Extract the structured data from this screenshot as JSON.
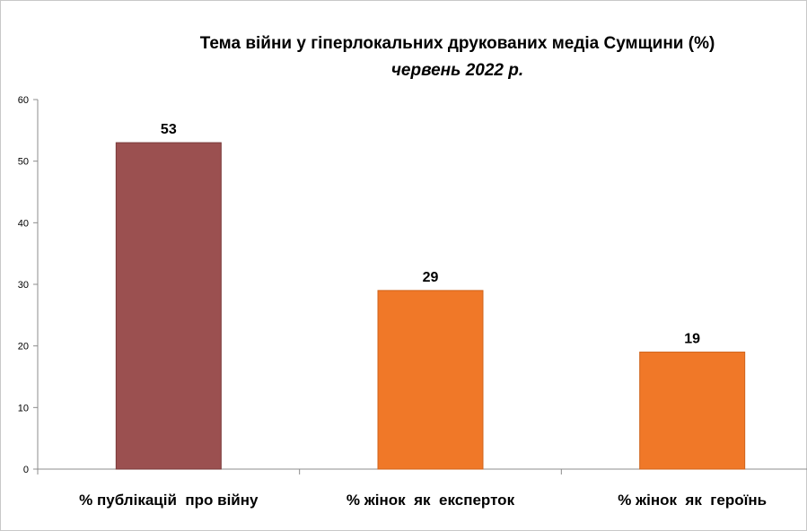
{
  "chart_data": {
    "type": "bar",
    "title": "Тема війни у гіперлокальних друкованих медіа Сумщини (%)",
    "subtitle": "червень 2022 р.",
    "categories": [
      "% публікацій  про війну",
      "% жінок  як  експерток",
      "% жінок  як  героїнь"
    ],
    "values": [
      53,
      29,
      19
    ],
    "bar_colors": [
      "#9b5050",
      "#f07828",
      "#f07828"
    ],
    "ylim": [
      0,
      60
    ],
    "yticks": [
      0,
      10,
      20,
      30,
      40,
      50,
      60
    ],
    "grid": false,
    "legend": "none",
    "data_labels": [
      "53",
      "29",
      "19"
    ]
  }
}
